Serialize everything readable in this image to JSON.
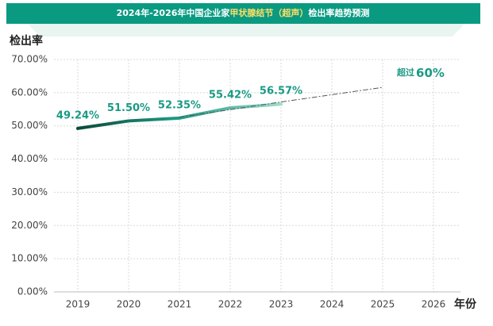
{
  "chart_data": {
    "type": "line",
    "title": [
      {
        "text": "2024年-2026年中国企业家",
        "color": "#ffffff"
      },
      {
        "text": "甲状腺结节（超声）",
        "color": "#ffe066"
      },
      {
        "text": "检出率趋势预测",
        "color": "#ffffff"
      }
    ],
    "y_label": "检出率",
    "x_label": "年份",
    "categories": [
      "2019",
      "2020",
      "2021",
      "2022",
      "2023",
      "2024",
      "2025",
      "2026"
    ],
    "series": [
      {
        "values": [
          49.24,
          51.5,
          52.35,
          55.42,
          56.57,
          null,
          null,
          null
        ],
        "value_labels": [
          "49.24%",
          "51.50%",
          "52.35%",
          "55.42%",
          "56.57%",
          null,
          null,
          null
        ],
        "color_stops": [
          "#0b4a3b",
          "#1f9c86",
          "#9fdccc"
        ]
      },
      {
        "values": [
          null,
          null,
          52.6,
          54.9,
          57.2,
          59.4,
          61.6,
          null
        ],
        "color": "#555555",
        "dashed": true
      }
    ],
    "annotation": {
      "prefix": "超过",
      "text": "60%"
    },
    "ylim": [
      0,
      70
    ],
    "yticks": [
      {
        "value": 0,
        "label": "0.00%"
      },
      {
        "value": 10,
        "label": "10.00%"
      },
      {
        "value": 20,
        "label": "20.00%"
      },
      {
        "value": 30,
        "label": "30.00%"
      },
      {
        "value": 40,
        "label": "40.00%"
      },
      {
        "value": 50,
        "label": "50.00%"
      },
      {
        "value": 60,
        "label": "60.00%"
      },
      {
        "value": 70,
        "label": "70.00%"
      }
    ],
    "grid": true
  }
}
